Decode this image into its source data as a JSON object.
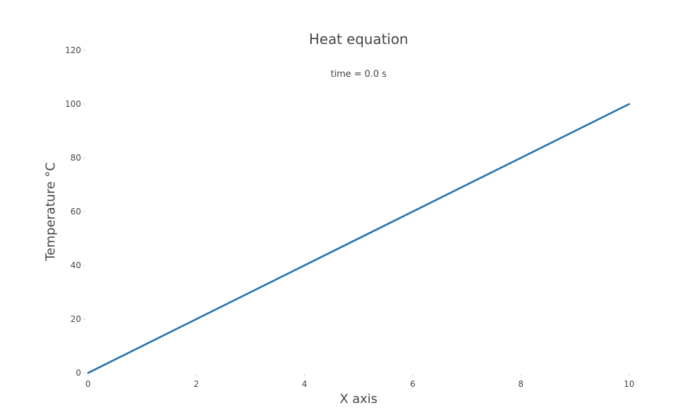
{
  "chart_data": {
    "type": "line",
    "title": "Heat equation",
    "subtitle": "time = 0.0 s",
    "xlabel": "X axis",
    "ylabel": "Temperature °C",
    "xlim": [
      0,
      10
    ],
    "ylim": [
      0,
      120
    ],
    "xticks": [
      "0",
      "2",
      "4",
      "6",
      "8",
      "10"
    ],
    "yticks": [
      "0",
      "20",
      "40",
      "60",
      "80",
      "100",
      "120"
    ],
    "grid": false,
    "series": [
      {
        "color": "#2471b0",
        "x": [
          0,
          10
        ],
        "y": [
          0,
          100
        ]
      }
    ]
  }
}
